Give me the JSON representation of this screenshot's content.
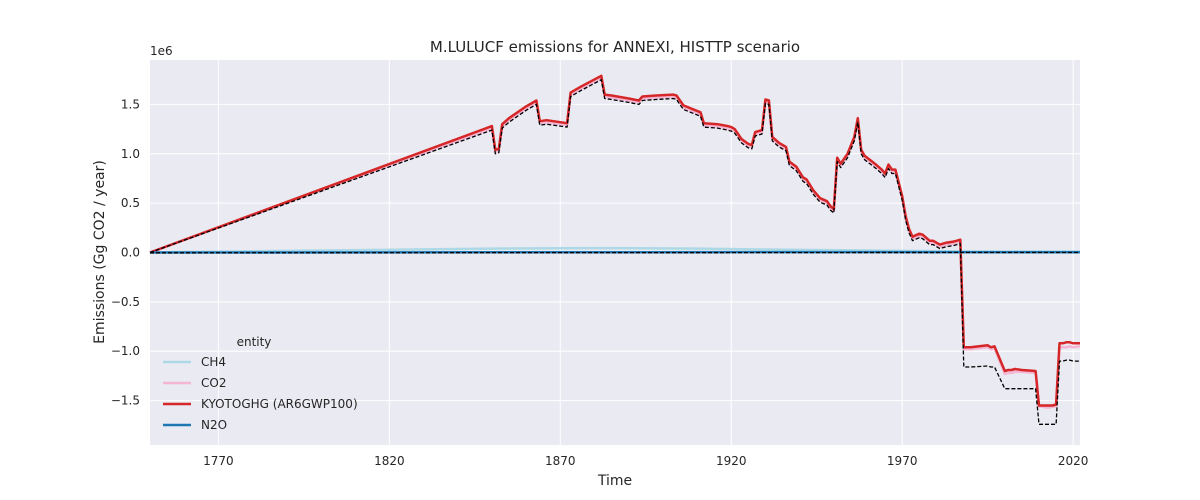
{
  "chart_data": {
    "type": "line",
    "title": "M.LULUCF emissions for ANNEXI, HISTTP scenario",
    "xlabel": "Time",
    "ylabel": "Emissions (Gg CO2 / year)",
    "y_offset_label": "1e6",
    "xlim": [
      1750,
      2022
    ],
    "ylim": [
      -1950000,
      1950000
    ],
    "x_ticks": [
      1770,
      1820,
      1870,
      1920,
      1970,
      2020
    ],
    "y_ticks": [
      -1500000,
      -1000000,
      -500000,
      0,
      500000,
      1000000,
      1500000
    ],
    "y_tick_labels": [
      "−1.5",
      "−1.0",
      "−0.5",
      "0.0",
      "0.5",
      "1.0",
      "1.5"
    ],
    "grid": true,
    "legend": {
      "title": "entity",
      "placement": "lower-left"
    },
    "series": [
      {
        "name": "CH4",
        "color": "#add8e6",
        "width": 2.5,
        "x": [
          1750,
          1800,
          1850,
          1880,
          1910,
          1930,
          1960,
          1990,
          2000,
          2020,
          2022
        ],
        "y": [
          0,
          20000,
          40000,
          45000,
          40000,
          30000,
          20000,
          10000,
          10000,
          10000,
          10000
        ]
      },
      {
        "name": "CO2",
        "color": "#f4b6d2",
        "width": 2.5,
        "x": [
          1750,
          1850,
          1851,
          1852,
          1853,
          1855,
          1860,
          1863,
          1864,
          1866,
          1872,
          1873,
          1876,
          1882,
          1883,
          1885,
          1890,
          1893,
          1894,
          1898,
          1903,
          1904,
          1906,
          1911,
          1912,
          1916,
          1919,
          1920,
          1921,
          1923,
          1925,
          1926,
          1927,
          1929,
          1930,
          1931,
          1932,
          1934,
          1936,
          1937,
          1939,
          1941,
          1942,
          1944,
          1946,
          1948,
          1949,
          1950,
          1951,
          1952,
          1954,
          1956,
          1957,
          1958,
          1959,
          1962,
          1964,
          1965,
          1966,
          1967,
          1968,
          1970,
          1971,
          1972,
          1973,
          1975,
          1976,
          1978,
          1979,
          1981,
          1983,
          1985,
          1986,
          1987,
          1988,
          1990,
          1995,
          1996,
          1997,
          2000,
          2001,
          2002,
          2003,
          2005,
          2009,
          2010,
          2011,
          2012,
          2013,
          2014,
          2015,
          2016,
          2017,
          2018,
          2019,
          2020,
          2022
        ],
        "y": [
          0,
          1260000,
          1020000,
          1030000,
          1280000,
          1340000,
          1460000,
          1520000,
          1310000,
          1320000,
          1290000,
          1600000,
          1660000,
          1770000,
          1580000,
          1570000,
          1540000,
          1520000,
          1560000,
          1570000,
          1580000,
          1570000,
          1470000,
          1400000,
          1290000,
          1280000,
          1260000,
          1250000,
          1230000,
          1130000,
          1080000,
          1070000,
          1200000,
          1220000,
          1530000,
          1520000,
          1150000,
          1090000,
          1050000,
          900000,
          850000,
          740000,
          720000,
          610000,
          530000,
          500000,
          450000,
          420000,
          940000,
          880000,
          980000,
          1150000,
          1340000,
          1020000,
          960000,
          880000,
          820000,
          780000,
          870000,
          820000,
          820000,
          550000,
          350000,
          220000,
          140000,
          170000,
          160000,
          100000,
          100000,
          60000,
          80000,
          90000,
          100000,
          120000,
          -980000,
          -980000,
          -960000,
          -980000,
          -970000,
          -1230000,
          -1220000,
          -1220000,
          -1210000,
          -1210000,
          -1220000,
          -1560000,
          -1560000,
          -1570000,
          -1570000,
          -1560000,
          -1560000,
          -960000,
          -960000,
          -960000,
          -950000,
          -960000,
          -950000
        ]
      },
      {
        "name": "KYOTOGHG (AR6GWP100)",
        "color": "#d62728",
        "width": 2.5,
        "x": [
          1750,
          1850,
          1851,
          1852,
          1853,
          1855,
          1860,
          1863,
          1864,
          1866,
          1872,
          1873,
          1876,
          1882,
          1883,
          1885,
          1890,
          1893,
          1894,
          1898,
          1903,
          1904,
          1906,
          1911,
          1912,
          1916,
          1919,
          1920,
          1921,
          1923,
          1925,
          1926,
          1927,
          1929,
          1930,
          1931,
          1932,
          1934,
          1936,
          1937,
          1939,
          1941,
          1942,
          1944,
          1946,
          1948,
          1949,
          1950,
          1951,
          1952,
          1954,
          1956,
          1957,
          1958,
          1959,
          1962,
          1964,
          1965,
          1966,
          1967,
          1968,
          1970,
          1971,
          1972,
          1973,
          1975,
          1976,
          1978,
          1979,
          1981,
          1983,
          1985,
          1986,
          1987,
          1988,
          1990,
          1995,
          1996,
          1997,
          2000,
          2001,
          2002,
          2003,
          2005,
          2009,
          2010,
          2011,
          2012,
          2013,
          2014,
          2015,
          2016,
          2017,
          2018,
          2019,
          2020,
          2022
        ],
        "y": [
          0,
          1280000,
          1040000,
          1050000,
          1300000,
          1360000,
          1480000,
          1540000,
          1330000,
          1340000,
          1310000,
          1620000,
          1680000,
          1790000,
          1600000,
          1590000,
          1560000,
          1540000,
          1580000,
          1590000,
          1600000,
          1590000,
          1490000,
          1420000,
          1310000,
          1300000,
          1280000,
          1270000,
          1250000,
          1150000,
          1100000,
          1090000,
          1220000,
          1240000,
          1550000,
          1540000,
          1170000,
          1110000,
          1070000,
          920000,
          870000,
          760000,
          740000,
          630000,
          550000,
          520000,
          470000,
          440000,
          960000,
          900000,
          1000000,
          1170000,
          1360000,
          1040000,
          980000,
          900000,
          840000,
          800000,
          890000,
          840000,
          840000,
          570000,
          370000,
          240000,
          160000,
          190000,
          180000,
          120000,
          120000,
          80000,
          100000,
          110000,
          120000,
          130000,
          -960000,
          -960000,
          -940000,
          -960000,
          -950000,
          -1200000,
          -1190000,
          -1190000,
          -1180000,
          -1190000,
          -1200000,
          -1550000,
          -1550000,
          -1550000,
          -1550000,
          -1550000,
          -1540000,
          -920000,
          -920000,
          -910000,
          -910000,
          -920000,
          -920000
        ]
      },
      {
        "name": "N2O",
        "color": "#1f77b4",
        "width": 2.5,
        "x": [
          1750,
          1850,
          1900,
          1950,
          2000,
          2022
        ],
        "y": [
          0,
          2000,
          3000,
          4000,
          3000,
          3000
        ]
      },
      {
        "name": "",
        "color": "#000000",
        "width": 1.3,
        "dashed": true,
        "x": [
          1750,
          1850,
          1851,
          1852,
          1853,
          1855,
          1860,
          1863,
          1864,
          1866,
          1872,
          1873,
          1876,
          1882,
          1883,
          1885,
          1890,
          1893,
          1894,
          1898,
          1903,
          1904,
          1906,
          1911,
          1912,
          1916,
          1919,
          1920,
          1921,
          1923,
          1925,
          1926,
          1927,
          1929,
          1930,
          1931,
          1932,
          1934,
          1936,
          1937,
          1939,
          1941,
          1942,
          1944,
          1946,
          1948,
          1949,
          1950,
          1951,
          1952,
          1954,
          1956,
          1957,
          1958,
          1959,
          1962,
          1964,
          1965,
          1966,
          1967,
          1968,
          1970,
          1971,
          1972,
          1973,
          1975,
          1976,
          1978,
          1979,
          1981,
          1983,
          1985,
          1986,
          1987,
          1988,
          1990,
          1995,
          1996,
          1997,
          2000,
          2001,
          2002,
          2003,
          2005,
          2009,
          2010,
          2011,
          2012,
          2013,
          2014,
          2015,
          2016,
          2017,
          2018,
          2019,
          2020,
          2022
        ],
        "y": [
          0,
          1240000,
          1000000,
          1010000,
          1260000,
          1320000,
          1440000,
          1500000,
          1290000,
          1300000,
          1270000,
          1580000,
          1640000,
          1750000,
          1560000,
          1550000,
          1520000,
          1500000,
          1540000,
          1550000,
          1560000,
          1550000,
          1450000,
          1380000,
          1270000,
          1260000,
          1240000,
          1230000,
          1210000,
          1110000,
          1060000,
          1050000,
          1180000,
          1200000,
          1510000,
          1500000,
          1130000,
          1070000,
          1030000,
          880000,
          830000,
          720000,
          700000,
          590000,
          510000,
          480000,
          430000,
          400000,
          920000,
          860000,
          960000,
          1130000,
          1320000,
          1000000,
          940000,
          860000,
          800000,
          760000,
          850000,
          800000,
          800000,
          530000,
          330000,
          200000,
          120000,
          150000,
          140000,
          80000,
          80000,
          40000,
          60000,
          70000,
          80000,
          90000,
          -1160000,
          -1160000,
          -1150000,
          -1160000,
          -1160000,
          -1380000,
          -1380000,
          -1380000,
          -1380000,
          -1380000,
          -1380000,
          -1740000,
          -1740000,
          -1740000,
          -1740000,
          -1740000,
          -1740000,
          -1100000,
          -1100000,
          -1090000,
          -1090000,
          -1100000,
          -1100000
        ]
      },
      {
        "name": "",
        "color": "#000000",
        "width": 1.3,
        "dashed": true,
        "x": [
          1750,
          1850,
          1900,
          1950,
          2000,
          2022
        ],
        "y": [
          -3000,
          -2000,
          -2000,
          -1000,
          0,
          0
        ]
      }
    ]
  }
}
